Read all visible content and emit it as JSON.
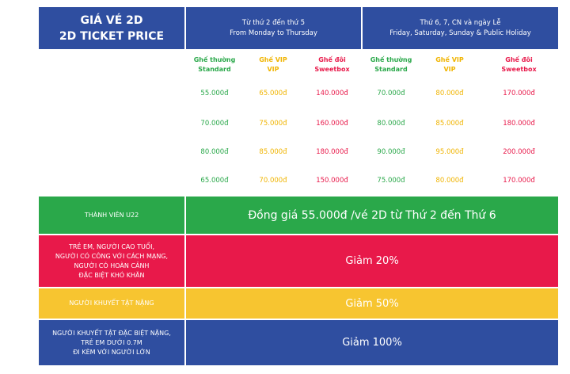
{
  "header": {
    "title_vi": "GIÁ VÉ 2D",
    "title_en": "2D TICKET PRICE",
    "weekday": {
      "vi": "Từ thứ 2 đến thứ 5",
      "en": "From Monday to Thursday"
    },
    "weekend": {
      "vi": "Thứ 6, 7, CN và ngày Lễ",
      "en": "Friday, Saturday, Sunday & Public Holiday"
    }
  },
  "seat_types": [
    {
      "vi": "Ghế thường",
      "en": "Standard"
    },
    {
      "vi": "Ghế VIP",
      "en": "VIP"
    },
    {
      "vi": "Ghế đôi",
      "en": "Sweetbox"
    },
    {
      "vi": "Ghế thường",
      "en": "Standard"
    },
    {
      "vi": "Ghế VIP",
      "en": "VIP"
    },
    {
      "vi": "Ghế đôi",
      "en": "Sweetbox"
    }
  ],
  "prices": [
    [
      "55.000đ",
      "65.000đ",
      "140.000đ",
      "70.000đ",
      "80.000đ",
      "170.000đ"
    ],
    [
      "70.000đ",
      "75.000đ",
      "160.000đ",
      "80.000đ",
      "85.000đ",
      "180.000đ"
    ],
    [
      "80.000đ",
      "85.000đ",
      "180.000đ",
      "90.000đ",
      "95.000đ",
      "200.000đ"
    ],
    [
      "65.000đ",
      "70.000đ",
      "150.000đ",
      "75.000đ",
      "80.000đ",
      "170.000đ"
    ]
  ],
  "discounts": [
    {
      "group": [
        "THÀNH VIÊN U22"
      ],
      "offer": "Đồng giá 55.000đ /vé 2D từ Thứ 2 đến Thứ 6"
    },
    {
      "group": [
        "TRẺ EM, NGƯỜI CAO TUỔI,",
        "NGƯỜI CÓ CÔNG VỚI CÁCH MẠNG,",
        "NGƯỜI CÓ HOÀN CẢNH",
        "ĐẶC BIỆT KHÓ KHĂN"
      ],
      "offer": "Giảm 20%"
    },
    {
      "group": [
        "NGƯỜI KHUYẾT TẬT NẶNG"
      ],
      "offer": "Giảm 50%"
    },
    {
      "group": [
        "NGƯỜI KHUYẾT TẬT ĐẶC BIỆT NẶNG,",
        "TRẺ EM DƯỚI 0.7M",
        "ĐI KÈM VỚI NGƯỜI LỚN"
      ],
      "offer": "Giảm 100%"
    }
  ]
}
